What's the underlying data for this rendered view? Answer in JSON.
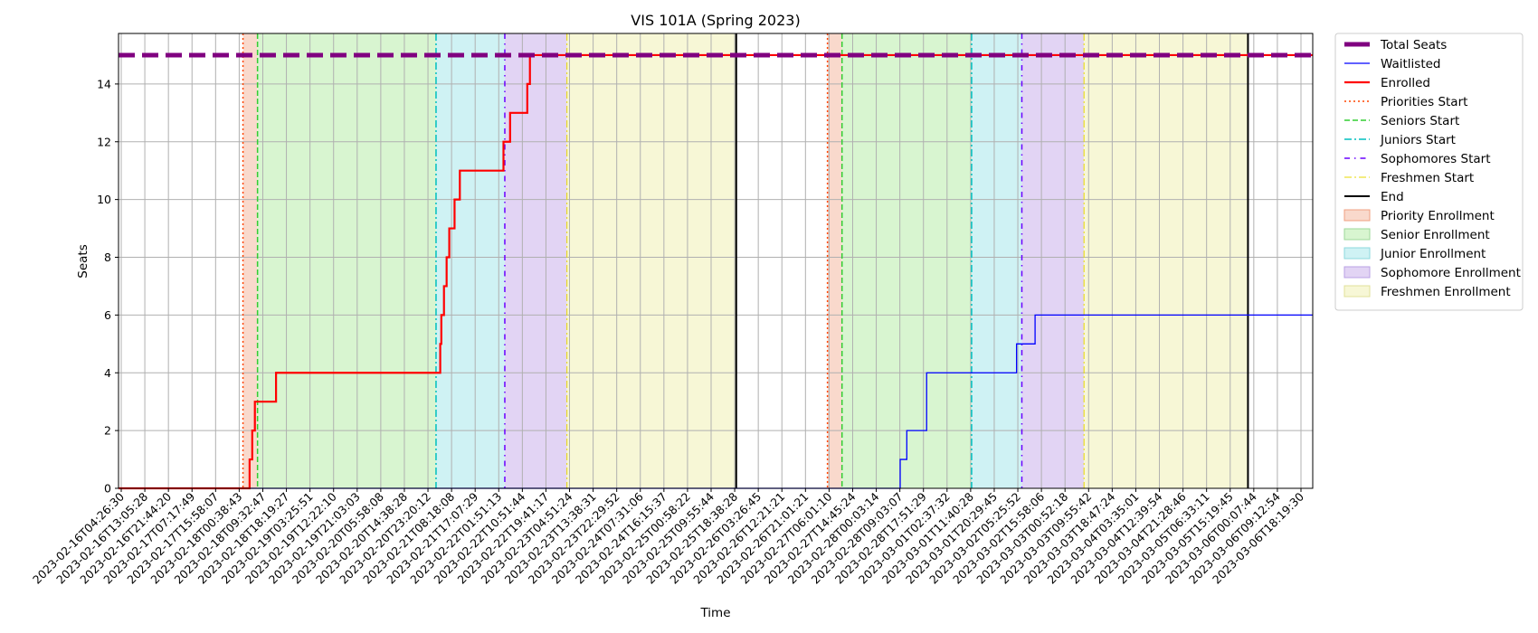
{
  "chart_data": {
    "type": "line",
    "title": "VIS 101A (Spring 2023)",
    "xlabel": "Time",
    "ylabel": "Seats",
    "ylim": [
      0,
      15.75
    ],
    "xlim": [
      "2023-02-16T04:26:30",
      "2023-03-06T23:59:00"
    ],
    "grid": true,
    "legend_placement": "outside-upper-right",
    "y_ticks": [
      0,
      2,
      4,
      6,
      8,
      10,
      12,
      14
    ],
    "x_tick_labels": [
      "2023-02-16T04:26:30",
      "2023-02-16T13:05:28",
      "2023-02-16T21:44:20",
      "2023-02-17T07:17:49",
      "2023-02-17T15:58:07",
      "2023-02-18T00:38:43",
      "2023-02-18T09:32:47",
      "2023-02-18T18:19:27",
      "2023-02-19T03:25:51",
      "2023-02-19T12:22:10",
      "2023-02-19T21:03:03",
      "2023-02-20T05:58:08",
      "2023-02-20T14:38:28",
      "2023-02-20T23:20:12",
      "2023-02-21T08:18:08",
      "2023-02-21T17:07:29",
      "2023-02-22T01:51:13",
      "2023-02-22T10:51:44",
      "2023-02-22T19:41:17",
      "2023-02-23T04:51:24",
      "2023-02-23T13:38:31",
      "2023-02-23T22:29:52",
      "2023-02-24T07:31:06",
      "2023-02-24T16:15:37",
      "2023-02-25T00:58:22",
      "2023-02-25T09:55:44",
      "2023-02-25T18:38:28",
      "2023-02-26T03:26:45",
      "2023-02-26T12:21:21",
      "2023-02-26T21:01:21",
      "2023-02-27T06:01:10",
      "2023-02-27T14:45:24",
      "2023-02-28T00:03:14",
      "2023-02-28T09:03:07",
      "2023-02-28T17:51:29",
      "2023-03-01T02:37:32",
      "2023-03-01T11:40:28",
      "2023-03-01T20:29:45",
      "2023-03-02T05:25:52",
      "2023-03-02T15:58:06",
      "2023-03-03T00:52:18",
      "2023-03-03T09:55:42",
      "2023-03-03T18:47:24",
      "2023-03-04T03:35:01",
      "2023-03-04T12:39:54",
      "2023-03-04T21:28:46",
      "2023-03-05T06:33:11",
      "2023-03-05T15:19:45",
      "2023-03-06T00:07:44",
      "2023-03-06T09:12:54",
      "2023-03-06T18:19:30"
    ],
    "colors": {
      "total_seats": "#800080",
      "waitlisted": "#0000ff",
      "enrolled": "#ff0000",
      "priorities_start": "#ff4500",
      "seniors_start": "#32cd32",
      "juniors_start": "#00bfbf",
      "sophomores_start": "#6a00ff",
      "freshmen_start": "#e8d800",
      "end": "#000000",
      "priority_fill": "#f9d9cc",
      "senior_fill": "#d8f5d0",
      "junior_fill": "#cff2f4",
      "sophomore_fill": "#e2d4f4",
      "freshmen_fill": "#f7f7d6"
    },
    "series": [
      {
        "name": "Total Seats",
        "x": [
          "2023-02-16T04:26:30",
          "2023-03-06T23:59:00"
        ],
        "values": [
          15,
          15
        ]
      },
      {
        "name": "Enrolled",
        "x": [
          "2023-02-16T04:26:30",
          "2023-02-18T06:00:00",
          "2023-02-18T07:00:00",
          "2023-02-18T08:00:00",
          "2023-02-18T08:30:00",
          "2023-02-18T16:00:00",
          "2023-02-21T06:00:00",
          "2023-02-21T06:05:00",
          "2023-02-21T06:30:00",
          "2023-02-21T07:30:00",
          "2023-02-21T08:30:00",
          "2023-02-21T09:30:00",
          "2023-02-21T11:30:00",
          "2023-02-21T13:30:00",
          "2023-02-22T06:00:00",
          "2023-02-22T08:30:00",
          "2023-02-22T15:00:00",
          "2023-02-22T16:00:00"
        ],
        "values": [
          0,
          1,
          2,
          3,
          3,
          4,
          4,
          5,
          6,
          7,
          8,
          9,
          10,
          11,
          12,
          13,
          14,
          15
        ]
      },
      {
        "name": "Waitlisted",
        "x": [
          "2023-02-16T04:26:30",
          "2023-02-28T12:00:00",
          "2023-02-28T14:30:00",
          "2023-02-28T22:00:00",
          "2023-03-01T19:00:00",
          "2023-03-02T08:00:00",
          "2023-03-02T15:00:00",
          "2023-03-06T23:59:00"
        ],
        "values": [
          0,
          1,
          2,
          4,
          4,
          5,
          6,
          6
        ]
      }
    ],
    "markers": [
      {
        "name": "Priorities Start",
        "x": [
          "2023-02-18T03:30:00",
          "2023-02-27T08:30:00"
        ]
      },
      {
        "name": "Seniors Start",
        "x": [
          "2023-02-18T09:00:00",
          "2023-02-27T14:00:00"
        ]
      },
      {
        "name": "Juniors Start",
        "x": [
          "2023-02-21T04:30:00",
          "2023-03-01T15:00:00"
        ]
      },
      {
        "name": "Sophomores Start",
        "x": [
          "2023-02-22T06:30:00",
          "2023-03-02T10:00:00"
        ]
      },
      {
        "name": "Freshmen Start",
        "x": [
          "2023-02-23T06:00:00",
          "2023-03-03T09:30:00"
        ]
      },
      {
        "name": "End",
        "x": [
          "2023-02-25T22:00:00",
          "2023-03-05T23:30:00"
        ]
      }
    ],
    "legend": [
      {
        "label": "Total Seats",
        "kind": "thick-dash",
        "color": "#800080"
      },
      {
        "label": "Waitlisted",
        "kind": "line-thin",
        "color": "#0000ff"
      },
      {
        "label": "Enrolled",
        "kind": "line-thick",
        "color": "#ff0000"
      },
      {
        "label": "Priorities Start",
        "kind": "dotted",
        "color": "#ff4500"
      },
      {
        "label": "Seniors Start",
        "kind": "dashed",
        "color": "#32cd32"
      },
      {
        "label": "Juniors Start",
        "kind": "dashdot",
        "color": "#00bfbf"
      },
      {
        "label": "Sophomores Start",
        "kind": "loose-dashdot",
        "color": "#6a00ff"
      },
      {
        "label": "Freshmen Start",
        "kind": "dashdot-thin",
        "color": "#e8d800"
      },
      {
        "label": "End",
        "kind": "line-black",
        "color": "#000000"
      },
      {
        "label": "Priority Enrollment",
        "kind": "patch",
        "color": "#f9d9cc",
        "edge": "#f0a080"
      },
      {
        "label": "Senior Enrollment",
        "kind": "patch",
        "color": "#d8f5d0",
        "edge": "#9ed89a"
      },
      {
        "label": "Junior Enrollment",
        "kind": "patch",
        "color": "#cff2f4",
        "edge": "#8ed8de"
      },
      {
        "label": "Sophomore Enrollment",
        "kind": "patch",
        "color": "#e2d4f4",
        "edge": "#b9a0e4"
      },
      {
        "label": "Freshmen Enrollment",
        "kind": "patch",
        "color": "#f7f7d6",
        "edge": "#e0e09a"
      }
    ]
  }
}
